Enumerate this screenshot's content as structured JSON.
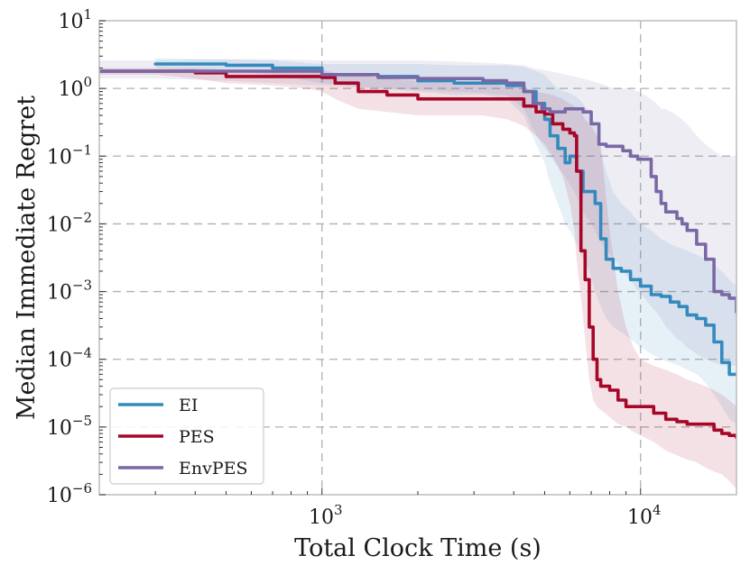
{
  "chart_data": {
    "type": "line",
    "xscale": "log",
    "yscale": "log",
    "xlabel": "Total Clock Time (s)",
    "ylabel": "Median Immediate Regret",
    "xlim": [
      200,
      20000
    ],
    "ylim": [
      1e-06,
      10
    ],
    "xticks": [
      {
        "value": 1000,
        "base": "10",
        "exp": "3"
      },
      {
        "value": 10000,
        "base": "10",
        "exp": "4"
      }
    ],
    "yticks": [
      {
        "value": 1e-06,
        "base": "10",
        "exp": "−6"
      },
      {
        "value": 1e-05,
        "base": "10",
        "exp": "−5"
      },
      {
        "value": 0.0001,
        "base": "10",
        "exp": "−4"
      },
      {
        "value": 0.001,
        "base": "10",
        "exp": "−3"
      },
      {
        "value": 0.01,
        "base": "10",
        "exp": "−2"
      },
      {
        "value": 0.1,
        "base": "10",
        "exp": "−1"
      },
      {
        "value": 1,
        "base": "10",
        "exp": "0"
      },
      {
        "value": 10,
        "base": "10",
        "exp": "1"
      }
    ],
    "grid": true,
    "legend_position": "bottom-left",
    "series": [
      {
        "name": "EI",
        "color": "#348ABD",
        "x": [
          300,
          500,
          700,
          1000,
          1500,
          2000,
          2600,
          3200,
          3800,
          4300,
          4700,
          5000,
          5200,
          5500,
          5800,
          6000,
          6300,
          6600,
          6900,
          7200,
          7500,
          7800,
          8200,
          8700,
          9300,
          10000,
          10800,
          11600,
          12400,
          13200,
          14000,
          15000,
          16000,
          17000,
          18000,
          19000,
          20000
        ],
        "y": [
          2.3,
          2.2,
          2.0,
          1.6,
          1.5,
          1.3,
          1.2,
          1.2,
          1.1,
          0.9,
          0.6,
          0.35,
          0.2,
          0.13,
          0.08,
          0.1,
          0.06,
          0.03,
          0.03,
          0.02,
          0.006,
          0.003,
          0.0022,
          0.002,
          0.0015,
          0.0012,
          0.0009,
          0.00085,
          0.0007,
          0.0006,
          0.00045,
          0.0004,
          0.00032,
          0.00018,
          9e-05,
          6e-05,
          6e-05
        ],
        "lower": [
          2.0,
          1.8,
          1.6,
          1.2,
          1.0,
          0.9,
          0.8,
          0.8,
          0.7,
          0.4,
          0.15,
          0.08,
          0.04,
          0.02,
          0.01,
          0.008,
          0.005,
          0.003,
          0.002,
          0.001,
          0.0006,
          0.0004,
          0.0003,
          0.00025,
          0.0002,
          0.00015,
          0.00012,
          0.0001,
          9e-05,
          8e-05,
          7e-05,
          6e-05,
          4.5e-05,
          3e-05,
          2e-05,
          1.3e-05,
          1.1e-05
        ],
        "upper": [
          2.8,
          2.7,
          2.6,
          2.3,
          2.3,
          2.3,
          2.2,
          2.2,
          2.2,
          2.1,
          1.8,
          1.6,
          1.3,
          1.0,
          0.9,
          0.85,
          0.75,
          0.6,
          0.45,
          0.3,
          0.12,
          0.06,
          0.03,
          0.02,
          0.015,
          0.01,
          0.008,
          0.006,
          0.005,
          0.0045,
          0.004,
          0.0035,
          0.003,
          0.0025,
          0.002,
          0.0015,
          0.0012
        ]
      },
      {
        "name": "PES",
        "color": "#A60628",
        "x": [
          200,
          300,
          400,
          500,
          700,
          900,
          1000,
          1100,
          1300,
          1600,
          2000,
          2600,
          3200,
          3800,
          4300,
          4700,
          5000,
          5300,
          5700,
          6000,
          6200,
          6300,
          6500,
          6700,
          6900,
          7100,
          7300,
          7500,
          8000,
          8500,
          9000,
          9500,
          10000,
          11000,
          12000,
          13000,
          14000,
          15000,
          16000,
          17000,
          18000,
          19000,
          20000
        ],
        "y": [
          1.8,
          1.8,
          1.7,
          1.5,
          1.5,
          1.5,
          1.45,
          1.2,
          0.9,
          0.8,
          0.7,
          0.7,
          0.7,
          0.7,
          0.55,
          0.45,
          0.42,
          0.3,
          0.25,
          0.22,
          0.2,
          0.06,
          0.004,
          0.0015,
          0.0003,
          0.0001,
          5e-05,
          4e-05,
          3.5e-05,
          2.5e-05,
          2e-05,
          2e-05,
          2e-05,
          1.6e-05,
          1.3e-05,
          1.2e-05,
          1.1e-05,
          1.1e-05,
          1.1e-05,
          9e-06,
          8e-06,
          7.5e-06,
          7e-06
        ],
        "lower": [
          1.6,
          1.6,
          1.4,
          1.2,
          1.1,
          1.0,
          0.9,
          0.7,
          0.5,
          0.45,
          0.4,
          0.4,
          0.4,
          0.35,
          0.28,
          0.2,
          0.15,
          0.1,
          0.05,
          0.02,
          0.008,
          0.003,
          0.0008,
          0.0002,
          5e-05,
          2.5e-05,
          2e-05,
          1.8e-05,
          1.4e-05,
          1.1e-05,
          1e-05,
          8.5e-06,
          7.5e-06,
          6e-06,
          4.5e-06,
          3.8e-06,
          3.3e-06,
          3e-06,
          2.5e-06,
          2.2e-06,
          2e-06,
          1.6e-06,
          1.2e-06
        ],
        "upper": [
          2.0,
          2.0,
          2.0,
          1.9,
          1.9,
          1.9,
          1.9,
          1.7,
          1.6,
          1.4,
          1.3,
          1.2,
          1.2,
          1.1,
          1.0,
          0.9,
          0.85,
          0.8,
          0.7,
          0.6,
          0.55,
          0.5,
          0.45,
          0.35,
          0.3,
          0.25,
          0.2,
          0.15,
          0.008,
          0.001,
          0.0003,
          0.00015,
          0.0001,
          8e-05,
          7e-05,
          6e-05,
          5e-05,
          4.5e-05,
          4e-05,
          3.5e-05,
          3e-05,
          2.5e-05,
          2e-05
        ]
      },
      {
        "name": "EnvPES",
        "color": "#7A68A6",
        "x": [
          200,
          300,
          500,
          700,
          1000,
          1500,
          2000,
          2600,
          3200,
          3800,
          4300,
          4600,
          4900,
          5200,
          5500,
          5800,
          6200,
          6600,
          7000,
          7400,
          7800,
          8300,
          8800,
          9300,
          9800,
          10300,
          10800,
          11200,
          11600,
          12000,
          12500,
          13000,
          13500,
          14000,
          15000,
          16000,
          17000,
          18000,
          19000,
          20000
        ],
        "y": [
          1.8,
          1.8,
          1.8,
          1.8,
          1.6,
          1.45,
          1.4,
          1.4,
          1.3,
          1.2,
          0.9,
          0.6,
          0.5,
          0.45,
          0.45,
          0.5,
          0.5,
          0.45,
          0.3,
          0.15,
          0.14,
          0.14,
          0.12,
          0.1,
          0.09,
          0.09,
          0.05,
          0.03,
          0.02,
          0.015,
          0.015,
          0.012,
          0.01,
          0.008,
          0.005,
          0.003,
          0.001,
          0.0009,
          0.0008,
          0.0005
        ],
        "lower": [
          1.4,
          1.4,
          1.3,
          1.2,
          1.1,
          1.0,
          0.95,
          0.9,
          0.85,
          0.8,
          0.5,
          0.25,
          0.15,
          0.1,
          0.07,
          0.05,
          0.03,
          0.015,
          0.01,
          0.006,
          0.004,
          0.003,
          0.002,
          0.0015,
          0.001,
          0.0008,
          0.0006,
          0.0005,
          0.0004,
          0.0003,
          0.00025,
          0.0002,
          0.00018,
          0.00015,
          0.00012,
          0.0001,
          9e-05,
          8e-05,
          8e-05,
          8e-05
        ],
        "upper": [
          2.6,
          2.6,
          2.7,
          2.7,
          2.6,
          2.6,
          2.6,
          2.5,
          2.4,
          2.3,
          2.2,
          2.0,
          1.9,
          1.8,
          1.7,
          1.6,
          1.5,
          1.4,
          1.3,
          1.2,
          1.1,
          1.0,
          1.0,
          1.0,
          0.9,
          0.8,
          0.7,
          0.6,
          0.5,
          0.5,
          0.45,
          0.4,
          0.35,
          0.3,
          0.2,
          0.15,
          0.12,
          0.1,
          0.1,
          0.1
        ]
      }
    ]
  }
}
